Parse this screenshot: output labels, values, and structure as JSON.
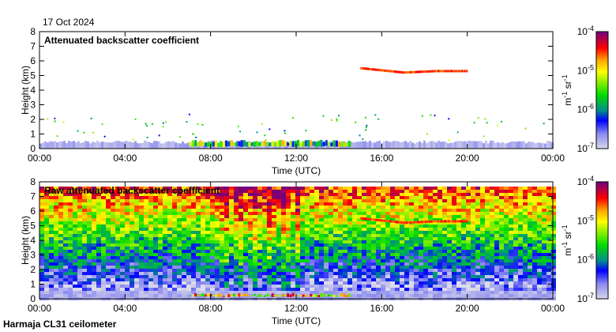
{
  "header": {
    "date": "17 Oct 2024"
  },
  "footer": {
    "station": "Harmaja CL31 ceilometer"
  },
  "colors": {
    "c1": "#dcdcea",
    "c2": "#8c8cf0",
    "c3": "#0000ff",
    "c4": "#008c8c",
    "c5": "#00dc00",
    "c6": "#ffff00",
    "c7": "#ffa000",
    "c8": "#ff0000",
    "c9": "#780078"
  },
  "chart_data": [
    {
      "type": "heatmap",
      "title": "Attenuated backscatter coefficient",
      "xlabel": "Time (UTC)",
      "ylabel": "Height (km)",
      "xlim_hours": [
        0,
        24
      ],
      "ylim": [
        0,
        8
      ],
      "xticks": [
        "00:00",
        "04:00",
        "08:00",
        "12:00",
        "16:00",
        "20:00",
        "00:00"
      ],
      "yticks": [
        "0",
        "1",
        "2",
        "3",
        "4",
        "5",
        "6",
        "7",
        "8"
      ],
      "colorbar": {
        "label": "m-1 sr-1",
        "label_main": "m",
        "sup1": "-1",
        "label_sr": " sr",
        "sup2": "-1",
        "ticks": [
          {
            "base": "10",
            "exp": "-7"
          },
          {
            "base": "10",
            "exp": "-6"
          },
          {
            "base": "10",
            "exp": "-5"
          },
          {
            "base": "10",
            "exp": "-4"
          }
        ],
        "log_range": [
          -7,
          -4
        ]
      },
      "noise_level": 0,
      "features": [
        {
          "name": "surface layer",
          "t": [
            0,
            24
          ],
          "h": [
            0,
            0.5
          ],
          "log_value": -6.9
        },
        {
          "name": "low aerosol layer",
          "t": [
            7,
            14.5
          ],
          "h": [
            0.1,
            0.6
          ],
          "log_value": -5.5
        },
        {
          "name": "elevated layer",
          "t": [
            15,
            20
          ],
          "h_profile": [
            [
              15,
              5.5
            ],
            [
              17,
              5.2
            ],
            [
              18.5,
              5.3
            ],
            [
              20,
              5.3
            ]
          ],
          "log_value": -4.5
        }
      ]
    },
    {
      "type": "heatmap",
      "title": "Raw attenuated backscatter coefficient",
      "xlabel": "Time (UTC)",
      "ylabel": "Height (km)",
      "xlim_hours": [
        0,
        24
      ],
      "ylim": [
        0,
        8
      ],
      "xticks": [
        "00:00",
        "04:00",
        "08:00",
        "12:00",
        "16:00",
        "20:00",
        "00:00"
      ],
      "yticks": [
        "0",
        "1",
        "2",
        "3",
        "4",
        "5",
        "6",
        "7",
        "8"
      ],
      "colorbar": {
        "label": "m-1 sr-1",
        "label_main": "m",
        "sup1": "-1",
        "label_sr": " sr",
        "sup2": "-1",
        "ticks": [
          {
            "base": "10",
            "exp": "-7"
          },
          {
            "base": "10",
            "exp": "-6"
          },
          {
            "base": "10",
            "exp": "-5"
          },
          {
            "base": "10",
            "exp": "-4"
          }
        ],
        "log_range": [
          -7,
          -4
        ]
      },
      "noise_level": 1,
      "features": [
        {
          "name": "surface layer",
          "t": [
            0,
            24
          ],
          "h": [
            0,
            0.5
          ],
          "log_value": -6.9
        },
        {
          "name": "low aerosol layer",
          "t": [
            7,
            14.5
          ],
          "h": [
            0.1,
            0.4
          ],
          "log_value": -5
        },
        {
          "name": "elevated layer",
          "t": [
            15,
            20
          ],
          "h_profile": [
            [
              15,
              5.5
            ],
            [
              17,
              5.2
            ],
            [
              18.5,
              5.3
            ],
            [
              20,
              5.3
            ]
          ],
          "log_value": -4.5
        },
        {
          "name": "noisy period",
          "t": [
            8,
            12
          ],
          "log_value": -4.6
        }
      ]
    }
  ]
}
